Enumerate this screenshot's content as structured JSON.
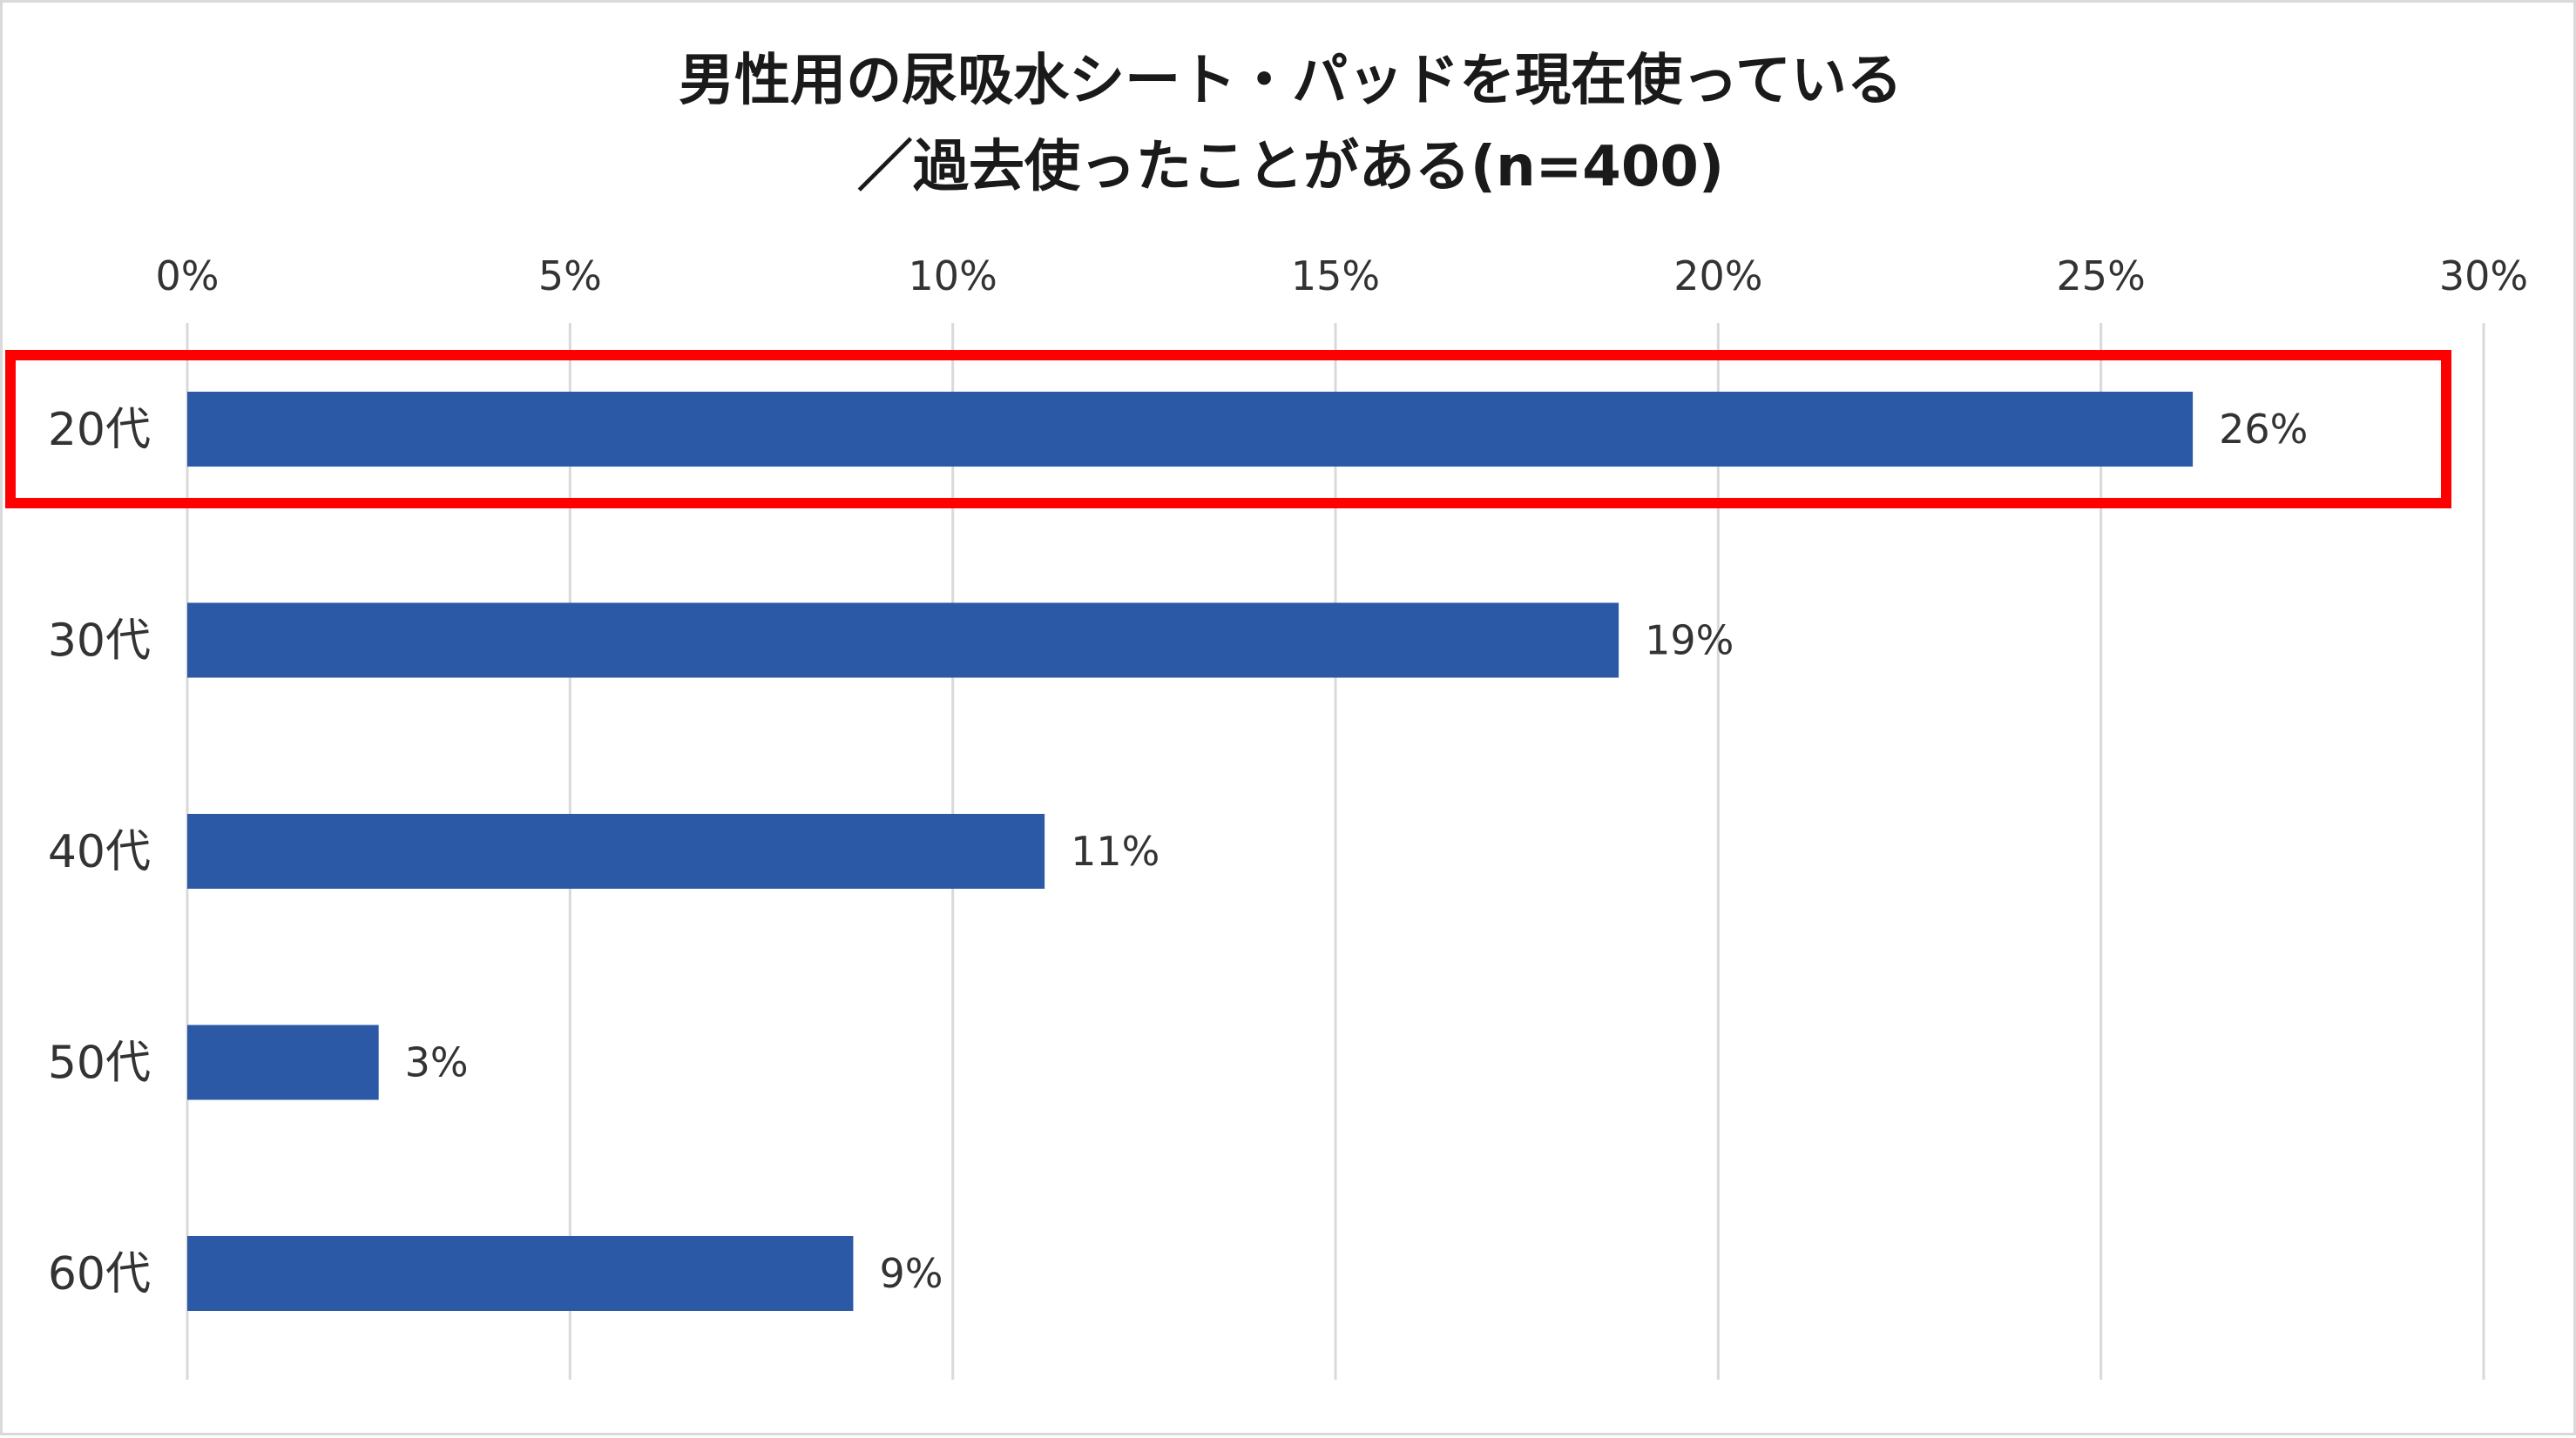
{
  "chart_data": {
    "type": "bar",
    "orientation": "horizontal",
    "title_lines": [
      "男性用の尿吸水シート・パッドを現在使っている",
      "／過去使ったことがある(n=400)"
    ],
    "categories": [
      "20代",
      "30代",
      "40代",
      "50代",
      "60代"
    ],
    "values": [
      26.2,
      18.7,
      11.2,
      2.5,
      8.7
    ],
    "data_labels": [
      "26%",
      "19%",
      "11%",
      "3%",
      "9%"
    ],
    "xlim": [
      0,
      30
    ],
    "x_ticks": [
      0,
      5,
      10,
      15,
      20,
      25,
      30
    ],
    "x_tick_labels": [
      "0%",
      "5%",
      "10%",
      "15%",
      "20%",
      "25%",
      "30%"
    ],
    "x_axis_position": "top",
    "grid": true,
    "legend": "none",
    "highlighted_category": "20代",
    "colors": {
      "bar": "#2b59a6",
      "grid": "#d9d9d9",
      "highlight": "#ff0000",
      "text": "#333333"
    }
  }
}
